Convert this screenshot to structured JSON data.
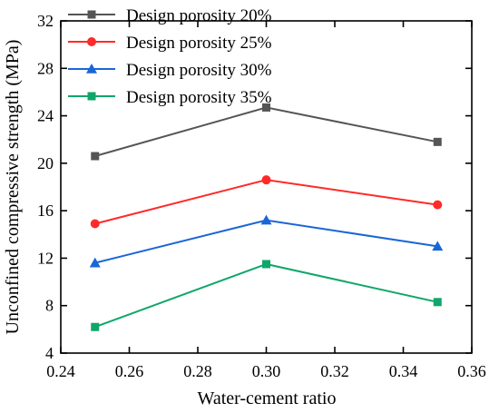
{
  "chart_data": {
    "type": "line",
    "xlabel": "Water-cement ratio",
    "ylabel": "Unconfined compressive strength (MPa)",
    "xlim": [
      0.24,
      0.36
    ],
    "ylim": [
      4,
      32
    ],
    "x_ticks": [
      "0.24",
      "0.26",
      "0.28",
      "0.30",
      "0.32",
      "0.34",
      "0.36"
    ],
    "y_ticks": [
      "4",
      "8",
      "12",
      "16",
      "20",
      "24",
      "28",
      "32"
    ],
    "grid": false,
    "legend_position": "top-left",
    "x": [
      0.25,
      0.3,
      0.35
    ],
    "series": [
      {
        "name": "Design porosity 20%",
        "color": "#555555",
        "marker": "square",
        "values": [
          20.6,
          24.7,
          21.8
        ]
      },
      {
        "name": "Design porosity 25%",
        "color": "#ff2a2a",
        "marker": "circle",
        "values": [
          14.9,
          18.6,
          16.5
        ]
      },
      {
        "name": "Design porosity 30%",
        "color": "#1a66d6",
        "marker": "triangle",
        "values": [
          11.6,
          15.2,
          13.0
        ]
      },
      {
        "name": "Design porosity 35%",
        "color": "#10a66a",
        "marker": "square",
        "values": [
          6.2,
          11.5,
          8.3
        ]
      }
    ]
  }
}
